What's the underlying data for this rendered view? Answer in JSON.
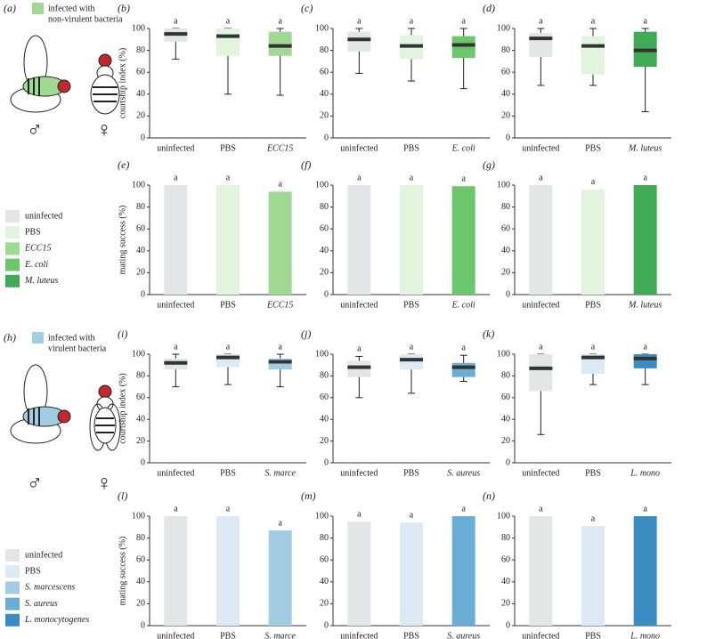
{
  "figure": {
    "label_a": "(a)",
    "label_h": "(h)",
    "top_legend": [
      "infected with",
      "non-virulent bacteria"
    ],
    "bottom_legend": [
      "infected with",
      "virulent bacteria"
    ],
    "male": "♂",
    "female": "♀",
    "legend1": [
      {
        "name": "uninfected",
        "color": "#e4e5e7"
      },
      {
        "name": "PBS",
        "color": "#e3f4de"
      },
      {
        "name": "ECC15",
        "color": "#9fd994"
      },
      {
        "name": "E. coli",
        "color": "#6cc66b"
      },
      {
        "name": "M. luteus",
        "color": "#3fab54"
      }
    ],
    "legend2": [
      {
        "name": "uninfected",
        "color": "#e4e5e7"
      },
      {
        "name": "PBS",
        "color": "#dde9f5"
      },
      {
        "name": "S. marcescens",
        "color": "#a2cce2"
      },
      {
        "name": "S. aureus",
        "color": "#6aadd5"
      },
      {
        "name": "L. monocytogenes",
        "color": "#3a8cc2"
      }
    ],
    "green": "#9fd994",
    "blue": "#a2cce2"
  },
  "chart_data": [
    {
      "type": "box",
      "label": "(b)",
      "ylabel": "courtship index (%)",
      "categories": [
        "uninfected",
        "PBS",
        "ECC15"
      ],
      "colors": [
        "#e4e5e7",
        "#e3f4de",
        "#9fd994"
      ],
      "boxes": [
        {
          "whislo": 72,
          "q1": 88,
          "med": 95,
          "q3": 100,
          "whishi": 100
        },
        {
          "whislo": 40,
          "q1": 75,
          "med": 93,
          "q3": 100,
          "whishi": 100
        },
        {
          "whislo": 39,
          "q1": 75,
          "med": 84,
          "q3": 97,
          "whishi": 100
        }
      ],
      "letters": [
        "a",
        "a",
        "a"
      ],
      "ylim": [
        0,
        100
      ],
      "yticks": [
        0,
        20,
        40,
        60,
        80,
        100
      ]
    },
    {
      "type": "box",
      "label": "(c)",
      "categories": [
        "uninfected",
        "PBS",
        "E. coli"
      ],
      "colors": [
        "#e4e5e7",
        "#e3f4de",
        "#6cc66b"
      ],
      "boxes": [
        {
          "whislo": 59,
          "q1": 79,
          "med": 90,
          "q3": 97,
          "whishi": 100
        },
        {
          "whislo": 52,
          "q1": 72,
          "med": 84,
          "q3": 94,
          "whishi": 100
        },
        {
          "whislo": 45,
          "q1": 73,
          "med": 85,
          "q3": 93,
          "whishi": 100
        }
      ],
      "letters": [
        "a",
        "a",
        "a"
      ],
      "ylim": [
        0,
        100
      ],
      "yticks": [
        0,
        20,
        40,
        60,
        80,
        100
      ]
    },
    {
      "type": "box",
      "label": "(d)",
      "categories": [
        "uninfected",
        "PBS",
        "M. luteus"
      ],
      "colors": [
        "#e4e5e7",
        "#e3f4de",
        "#3fab54"
      ],
      "boxes": [
        {
          "whislo": 48,
          "q1": 74,
          "med": 91,
          "q3": 96,
          "whishi": 100
        },
        {
          "whislo": 48,
          "q1": 58,
          "med": 84,
          "q3": 93,
          "whishi": 100
        },
        {
          "whislo": 24,
          "q1": 65,
          "med": 80,
          "q3": 97,
          "whishi": 100
        }
      ],
      "letters": [
        "a",
        "a",
        "a"
      ],
      "ylim": [
        0,
        100
      ],
      "yticks": [
        0,
        20,
        40,
        60,
        80,
        100
      ]
    },
    {
      "type": "bar",
      "label": "(e)",
      "ylabel": "mating success (%)",
      "categories": [
        "uninfected",
        "PBS",
        "ECC15"
      ],
      "colors": [
        "#e4e5e7",
        "#e3f4de",
        "#9fd994"
      ],
      "values": [
        100,
        100,
        94
      ],
      "letters": [
        "a",
        "a",
        "a"
      ],
      "ylim": [
        0,
        100
      ],
      "yticks": [
        0,
        20,
        40,
        60,
        80,
        100
      ]
    },
    {
      "type": "bar",
      "label": "(f)",
      "categories": [
        "uninfected",
        "PBS",
        "E. coli"
      ],
      "colors": [
        "#e4e5e7",
        "#e3f4de",
        "#6cc66b"
      ],
      "values": [
        100,
        100,
        99
      ],
      "letters": [
        "a",
        "a",
        "a"
      ],
      "ylim": [
        0,
        100
      ],
      "yticks": [
        0,
        20,
        40,
        60,
        80,
        100
      ]
    },
    {
      "type": "bar",
      "label": "(g)",
      "categories": [
        "uninfected",
        "PBS",
        "M. luteus"
      ],
      "colors": [
        "#e4e5e7",
        "#e3f4de",
        "#3fab54"
      ],
      "values": [
        100,
        96,
        100
      ],
      "letters": [
        "a",
        "a",
        "a"
      ],
      "ylim": [
        0,
        100
      ],
      "yticks": [
        0,
        20,
        40,
        60,
        80,
        100
      ]
    },
    {
      "type": "box",
      "label": "(i)",
      "ylabel": "courtship index (%)",
      "categories": [
        "uninfected",
        "PBS",
        "S. marce"
      ],
      "colors": [
        "#e4e5e7",
        "#dde9f5",
        "#a2cce2"
      ],
      "boxes": [
        {
          "whislo": 70,
          "q1": 86,
          "med": 92,
          "q3": 96,
          "whishi": 100
        },
        {
          "whislo": 72,
          "q1": 88,
          "med": 97,
          "q3": 100,
          "whishi": 100
        },
        {
          "whislo": 70,
          "q1": 86,
          "med": 93,
          "q3": 96,
          "whishi": 100
        }
      ],
      "letters": [
        "a",
        "a",
        "a"
      ],
      "ylim": [
        0,
        100
      ],
      "yticks": [
        0,
        20,
        40,
        60,
        80,
        100
      ]
    },
    {
      "type": "box",
      "label": "(j)",
      "categories": [
        "uninfected",
        "PBS",
        "S. aureus"
      ],
      "colors": [
        "#e4e5e7",
        "#dde9f5",
        "#6aadd5"
      ],
      "boxes": [
        {
          "whislo": 60,
          "q1": 79,
          "med": 88,
          "q3": 94,
          "whishi": 98
        },
        {
          "whislo": 64,
          "q1": 86,
          "med": 95,
          "q3": 100,
          "whishi": 100
        },
        {
          "whislo": 75,
          "q1": 79,
          "med": 88,
          "q3": 92,
          "whishi": 99
        }
      ],
      "letters": [
        "a",
        "a",
        "a"
      ],
      "ylim": [
        0,
        100
      ],
      "yticks": [
        0,
        20,
        40,
        60,
        80,
        100
      ]
    },
    {
      "type": "box",
      "label": "(k)",
      "categories": [
        "uninfected",
        "PBS",
        "L. mono"
      ],
      "colors": [
        "#e4e5e7",
        "#dde9f5",
        "#3a8cc2"
      ],
      "boxes": [
        {
          "whislo": 26,
          "q1": 66,
          "med": 87,
          "q3": 100,
          "whishi": 100
        },
        {
          "whislo": 72,
          "q1": 82,
          "med": 97,
          "q3": 100,
          "whishi": 100
        },
        {
          "whislo": 72,
          "q1": 87,
          "med": 96,
          "q3": 100,
          "whishi": 100
        }
      ],
      "letters": [
        "a",
        "a",
        "a"
      ],
      "ylim": [
        0,
        100
      ],
      "yticks": [
        0,
        20,
        40,
        60,
        80,
        100
      ]
    },
    {
      "type": "bar",
      "label": "(l)",
      "ylabel": "mating success (%)",
      "categories": [
        "uninfected",
        "PBS",
        "S. marce"
      ],
      "colors": [
        "#e4e5e7",
        "#dde9f5",
        "#a2cce2"
      ],
      "values": [
        100,
        100,
        87
      ],
      "letters": [
        "a",
        "a",
        "a"
      ],
      "ylim": [
        0,
        100
      ],
      "yticks": [
        0,
        20,
        40,
        60,
        80,
        100
      ]
    },
    {
      "type": "bar",
      "label": "(m)",
      "categories": [
        "uninfected",
        "PBS",
        "S. aureus"
      ],
      "colors": [
        "#e4e5e7",
        "#dde9f5",
        "#6aadd5"
      ],
      "values": [
        95,
        94,
        100
      ],
      "letters": [
        "a",
        "a",
        "a"
      ],
      "ylim": [
        0,
        100
      ],
      "yticks": [
        0,
        20,
        40,
        60,
        80,
        100
      ]
    },
    {
      "type": "bar",
      "label": "(n)",
      "categories": [
        "uninfected",
        "PBS",
        "L. mono"
      ],
      "colors": [
        "#e4e5e7",
        "#dde9f5",
        "#3a8cc2"
      ],
      "values": [
        100,
        91,
        100
      ],
      "letters": [
        "a",
        "a",
        "a"
      ],
      "ylim": [
        0,
        100
      ],
      "yticks": [
        0,
        20,
        40,
        60,
        80,
        100
      ]
    }
  ]
}
